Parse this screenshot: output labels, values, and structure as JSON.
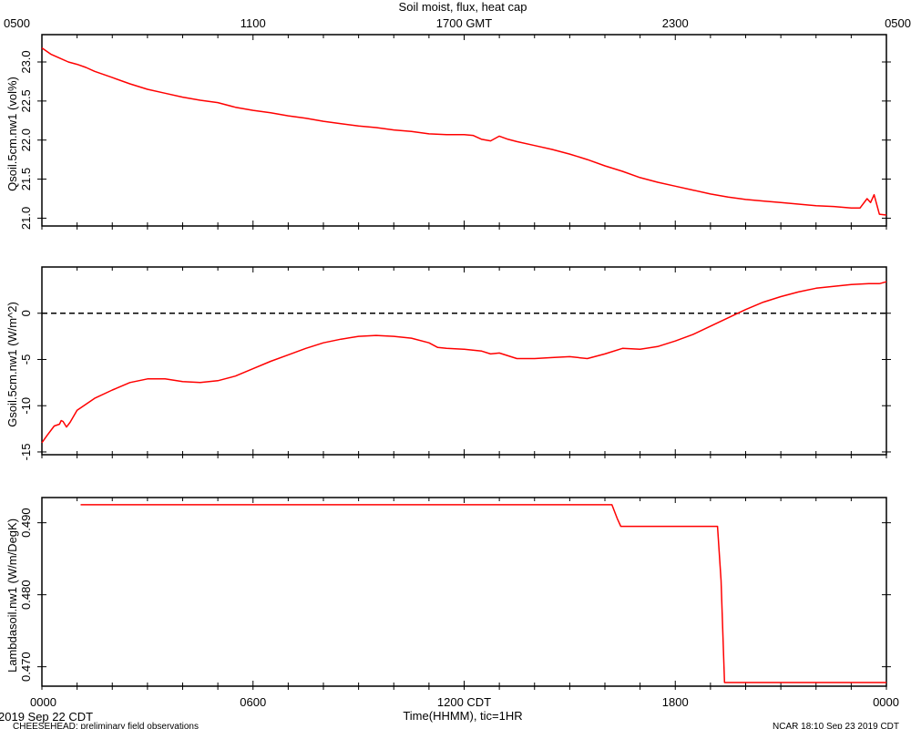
{
  "title": "Soil moist, flux, heat cap",
  "top_axis": {
    "ticks": [
      {
        "hour": 0,
        "label": "0500"
      },
      {
        "hour": 6,
        "label": "1100"
      },
      {
        "hour": 12,
        "label": "1700 GMT"
      },
      {
        "hour": 18,
        "label": "2300"
      },
      {
        "hour": 24,
        "label": "0500"
      }
    ]
  },
  "bottom_axis": {
    "ticks": [
      {
        "hour": 0,
        "label": "0000"
      },
      {
        "hour": 6,
        "label": "0600"
      },
      {
        "hour": 12,
        "label": "1200 CDT"
      },
      {
        "hour": 18,
        "label": "1800"
      },
      {
        "hour": 24,
        "label": "0000"
      }
    ],
    "xlabel": "Time(HHMM), tic=1HR"
  },
  "footer": {
    "date": "2019 Sep 22 CDT",
    "project": "CHEESEHEAD: preliminary field observations",
    "credit": "NCAR 18:10 Sep 23 2019 CDT"
  },
  "colors": {
    "series": "#ff0000",
    "axis": "#000000"
  },
  "chart_data": [
    {
      "type": "line",
      "ylabel": "Qsoil.5cm.nw1 (vol%)",
      "ylim": [
        20.9,
        23.35
      ],
      "yticks": [
        {
          "value": 21.0,
          "label": "21.0"
        },
        {
          "value": 21.5,
          "label": "21.5"
        },
        {
          "value": 22.0,
          "label": "22.0"
        },
        {
          "value": 22.5,
          "label": "22.5"
        },
        {
          "value": 23.0,
          "label": "23.0"
        }
      ],
      "x_hours": [
        0,
        0.25,
        0.5,
        0.75,
        1.0,
        1.25,
        1.5,
        2.0,
        2.5,
        3.0,
        3.5,
        4.0,
        4.5,
        5.0,
        5.5,
        6.0,
        6.5,
        7.0,
        7.5,
        8.0,
        8.5,
        9.0,
        9.5,
        10.0,
        10.5,
        11.0,
        11.5,
        12.0,
        12.25,
        12.5,
        12.75,
        13.0,
        13.25,
        13.5,
        14.0,
        14.5,
        15.0,
        15.5,
        16.0,
        16.5,
        17.0,
        17.5,
        18.0,
        18.5,
        19.0,
        19.5,
        20.0,
        20.5,
        21.0,
        21.5,
        22.0,
        22.5,
        23.0,
        23.25,
        23.45,
        23.55,
        23.65,
        23.8,
        24.0
      ],
      "series": [
        {
          "values": [
            23.18,
            23.1,
            23.05,
            23.0,
            22.97,
            22.93,
            22.88,
            22.8,
            22.72,
            22.65,
            22.6,
            22.55,
            22.51,
            22.48,
            22.42,
            22.38,
            22.35,
            22.31,
            22.28,
            22.24,
            22.21,
            22.18,
            22.16,
            22.13,
            22.11,
            22.08,
            22.07,
            22.07,
            22.06,
            22.01,
            21.99,
            22.05,
            22.01,
            21.98,
            21.93,
            21.88,
            21.82,
            21.75,
            21.67,
            21.6,
            21.52,
            21.46,
            21.41,
            21.36,
            21.31,
            21.27,
            21.24,
            21.22,
            21.2,
            21.18,
            21.16,
            21.15,
            21.13,
            21.13,
            21.25,
            21.2,
            21.3,
            21.05,
            21.04
          ]
        }
      ]
    },
    {
      "type": "line",
      "ylabel": "Gsoil.5cm.nw1 (W/m^2)",
      "ylim": [
        -15.3,
        5.0
      ],
      "reference_line": 0,
      "yticks": [
        {
          "value": -15,
          "label": "-15"
        },
        {
          "value": -10,
          "label": "-10"
        },
        {
          "value": -5,
          "label": "-5"
        },
        {
          "value": 0,
          "label": "0"
        }
      ],
      "x_hours": [
        0,
        0.15,
        0.35,
        0.5,
        0.55,
        0.6,
        0.7,
        0.8,
        1.0,
        1.5,
        2.0,
        2.5,
        3.0,
        3.5,
        4.0,
        4.5,
        5.0,
        5.5,
        6.0,
        6.5,
        7.0,
        7.5,
        8.0,
        8.5,
        9.0,
        9.5,
        10.0,
        10.5,
        11.0,
        11.25,
        11.5,
        12.0,
        12.5,
        12.75,
        13.0,
        13.5,
        14.0,
        14.5,
        15.0,
        15.5,
        16.0,
        16.5,
        17.0,
        17.5,
        18.0,
        18.5,
        19.0,
        19.5,
        20.0,
        20.5,
        21.0,
        21.5,
        22.0,
        22.5,
        23.0,
        23.5,
        23.8,
        24.0
      ],
      "series": [
        {
          "values": [
            -14.0,
            -13.2,
            -12.2,
            -12.0,
            -11.6,
            -11.7,
            -12.3,
            -11.8,
            -10.5,
            -9.2,
            -8.3,
            -7.5,
            -7.1,
            -7.1,
            -7.4,
            -7.5,
            -7.3,
            -6.8,
            -6.0,
            -5.2,
            -4.5,
            -3.8,
            -3.2,
            -2.8,
            -2.5,
            -2.4,
            -2.5,
            -2.7,
            -3.2,
            -3.7,
            -3.8,
            -3.9,
            -4.1,
            -4.4,
            -4.3,
            -4.9,
            -4.9,
            -4.8,
            -4.7,
            -4.9,
            -4.4,
            -3.8,
            -3.9,
            -3.6,
            -3.0,
            -2.3,
            -1.4,
            -0.5,
            0.4,
            1.2,
            1.8,
            2.3,
            2.7,
            2.9,
            3.1,
            3.2,
            3.2,
            3.4
          ]
        }
      ]
    },
    {
      "type": "line",
      "ylabel": "Lambdasoil.nw1 (W/m/DegK)",
      "ylim": [
        0.4673,
        0.4935
      ],
      "yticks": [
        {
          "value": 0.47,
          "label": "0.470"
        },
        {
          "value": 0.48,
          "label": "0.480"
        },
        {
          "value": 0.49,
          "label": "0.490"
        }
      ],
      "x_hours": [
        1.1,
        16.2,
        16.35,
        16.45,
        19.2,
        19.3,
        19.4,
        24.0
      ],
      "series": [
        {
          "values": [
            0.4925,
            0.4925,
            0.4906,
            0.4895,
            0.4895,
            0.482,
            0.4678,
            0.4678
          ]
        }
      ]
    }
  ]
}
